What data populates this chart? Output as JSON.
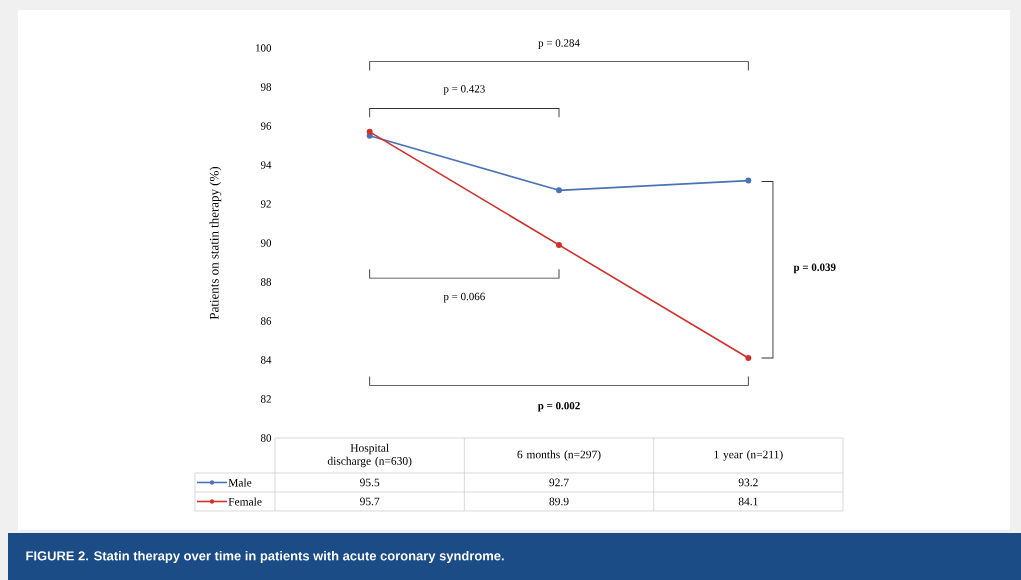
{
  "chart_data": {
    "type": "line",
    "title": "FIGURE 2. Statin therapy over time in patients with acute coronary syndrome.",
    "ylabel": "Patients on statin therapy (%)",
    "categories": [
      "Hospital discharge (n=630)",
      "6 months (n=297)",
      "1 year (n=211)"
    ],
    "series": [
      {
        "name": "Male",
        "color": "#4a72b8",
        "values": [
          95.5,
          92.7,
          93.2
        ]
      },
      {
        "name": "Female",
        "color": "#d0312d",
        "values": [
          95.7,
          89.9,
          84.1
        ]
      }
    ],
    "ylim": [
      80,
      100
    ],
    "yticks": [
      80,
      82,
      84,
      86,
      88,
      90,
      92,
      94,
      96,
      98,
      100
    ],
    "annotations": [
      "p = 0.284",
      "p = 0.423",
      "p = 0.066",
      "**p = 0.039**",
      "**p = 0.002**"
    ],
    "data_labels": true,
    "legend": "bottom left",
    "marker": "circle",
    "line_style": "solid",
    "grid": false
  }
}
